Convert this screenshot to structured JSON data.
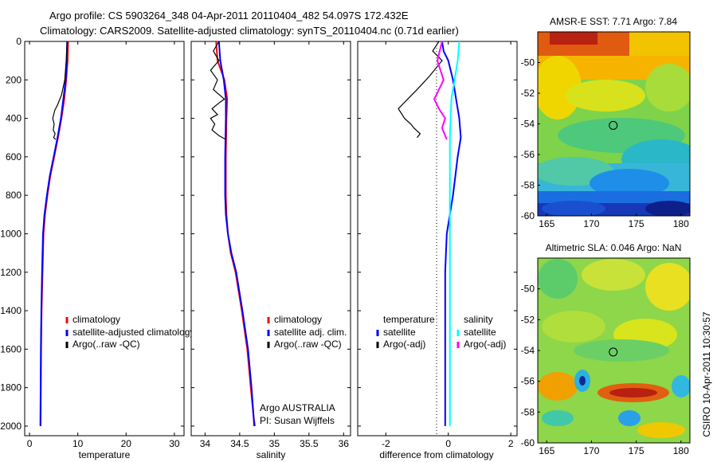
{
  "header": {
    "line1": "Argo profile: CS 5903264_348 04-Apr-2011 20110404_482 54.097S 172.432E",
    "line2": "Climatology: CARS2009. Satellite-adjusted climatology: synTS_20110404.nc (0.71d earlier)"
  },
  "side_label": "CSIRO 10-Apr-2011 10:30:57",
  "colors": {
    "clim": "#ff0000",
    "sat": "#0000ff",
    "argo": "#000000",
    "cyan": "#00ffff",
    "magenta": "#ff00ff"
  },
  "chart_data": [
    {
      "id": "temperature",
      "type": "line",
      "xlabel": "temperature",
      "xlim": [
        -1,
        32
      ],
      "ylim": [
        0,
        2050
      ],
      "xticks": [
        0,
        10,
        20,
        30
      ],
      "yticks": [
        0,
        200,
        400,
        600,
        800,
        1000,
        1200,
        1400,
        1600,
        1800,
        2000
      ],
      "legend": [
        "climatology",
        "satellite-adjusted climatology",
        "Argo(..raw -QC)"
      ],
      "series": [
        {
          "name": "climatology",
          "color": "clim",
          "x": [
            8.0,
            7.9,
            7.6,
            7.2,
            6.6,
            5.9,
            5.1,
            4.3,
            3.7,
            3.2,
            2.9,
            2.7,
            2.5,
            2.4,
            2.35,
            2.3
          ],
          "y": [
            0,
            100,
            200,
            300,
            400,
            500,
            600,
            700,
            800,
            900,
            1000,
            1200,
            1400,
            1600,
            1800,
            2000
          ]
        },
        {
          "name": "satellite-adjusted climatology",
          "color": "sat",
          "x": [
            7.8,
            7.7,
            7.5,
            7.0,
            6.5,
            5.8,
            5.0,
            4.2,
            3.6,
            3.1,
            2.8,
            2.6,
            2.45,
            2.35,
            2.3,
            2.25
          ],
          "y": [
            0,
            100,
            200,
            300,
            400,
            500,
            600,
            700,
            800,
            900,
            1000,
            1200,
            1400,
            1600,
            1800,
            2000
          ]
        },
        {
          "name": "Argo(..raw -QC)",
          "color": "argo",
          "x": [
            7.8,
            7.6,
            7.3,
            6.6,
            5.8,
            5.2,
            4.8,
            5.1,
            4.9,
            5.3,
            5.0,
            5.4
          ],
          "y": [
            0,
            100,
            200,
            280,
            330,
            360,
            400,
            430,
            460,
            480,
            500,
            510
          ]
        }
      ]
    },
    {
      "id": "salinity",
      "type": "line",
      "xlabel": "salinity",
      "xlim": [
        33.8,
        36.1
      ],
      "ylim": [
        0,
        2050
      ],
      "xticks": [
        34,
        34.5,
        35,
        35.5,
        36
      ],
      "legend": [
        "climatology",
        "satellite adj. clim.",
        "Argo(..raw -QC)"
      ],
      "footer": [
        "Argo AUSTRALIA",
        "PI: Susan Wijffels"
      ],
      "series": [
        {
          "name": "climatology",
          "color": "clim",
          "x": [
            34.16,
            34.18,
            34.28,
            34.32,
            34.31,
            34.3,
            34.3,
            34.31,
            34.33,
            34.37,
            34.44,
            34.53,
            34.61,
            34.66,
            34.7,
            34.72
          ],
          "y": [
            0,
            100,
            200,
            300,
            400,
            600,
            800,
            900,
            1000,
            1100,
            1200,
            1400,
            1600,
            1800,
            1950,
            2000
          ]
        },
        {
          "name": "satellite adj. clim.",
          "color": "sat",
          "x": [
            34.2,
            34.22,
            34.27,
            34.3,
            34.3,
            34.29,
            34.29,
            34.3,
            34.33,
            34.38,
            34.45,
            34.54,
            34.62,
            34.67,
            34.7,
            34.71
          ],
          "y": [
            0,
            100,
            200,
            300,
            400,
            600,
            800,
            900,
            1000,
            1100,
            1200,
            1400,
            1600,
            1800,
            1950,
            2000
          ]
        },
        {
          "name": "Argo(..raw -QC)",
          "color": "argo",
          "x": [
            34.2,
            34.12,
            34.2,
            34.08,
            34.18,
            34.12,
            34.28,
            34.2,
            34.1,
            34.18,
            34.08,
            34.14,
            34.1,
            34.2,
            34.3
          ],
          "y": [
            0,
            50,
            100,
            150,
            200,
            250,
            300,
            320,
            350,
            380,
            400,
            430,
            460,
            490,
            510
          ]
        }
      ]
    },
    {
      "id": "difference",
      "type": "line",
      "xlabel": "difference from climatology",
      "xlim": [
        -2.9,
        2.2
      ],
      "ylim": [
        0,
        2050
      ],
      "xticks": [
        -2,
        0,
        2
      ],
      "legend": [
        "temperature",
        "satellite",
        "Argo(-adj)",
        "salinity",
        "satellite",
        "Argo(-adj)"
      ],
      "series": [
        {
          "name": "temperature satellite",
          "color": "sat",
          "x": [
            -0.2,
            -0.15,
            0.0,
            0.15,
            0.25,
            0.35,
            0.4,
            0.3,
            0.15,
            0.05,
            -0.05,
            -0.1,
            -0.1,
            -0.1,
            -0.1
          ],
          "y": [
            0,
            50,
            100,
            200,
            300,
            400,
            500,
            600,
            800,
            900,
            1000,
            1200,
            1400,
            1600,
            2000
          ]
        },
        {
          "name": "temperature Argo(-adj)",
          "color": "argo",
          "x": [
            -0.3,
            -0.5,
            -0.2,
            -0.6,
            -1.0,
            -1.3,
            -1.6,
            -1.4,
            -1.2,
            -1.1,
            -0.9,
            -1.0
          ],
          "y": [
            0,
            50,
            100,
            180,
            250,
            300,
            350,
            400,
            430,
            450,
            480,
            500
          ]
        },
        {
          "name": "salinity satellite",
          "color": "cyan",
          "x": [
            0.35,
            0.3,
            0.2,
            0.1,
            0.05,
            0.05,
            0.05,
            0.05,
            0.05,
            0.05
          ],
          "y": [
            0,
            100,
            200,
            300,
            500,
            800,
            1000,
            1400,
            1800,
            2000
          ]
        },
        {
          "name": "salinity Argo(-adj)",
          "color": "magenta",
          "x": [
            -0.2,
            -0.35,
            -0.15,
            -0.3,
            -0.45,
            -0.3,
            -0.1,
            -0.2,
            -0.05
          ],
          "y": [
            0,
            100,
            200,
            250,
            300,
            350,
            400,
            450,
            510
          ]
        }
      ]
    },
    {
      "id": "sst_map",
      "type": "heatmap",
      "title": "AMSR-E SST: 7.71 Argo: 7.84",
      "xlim": [
        164,
        181
      ],
      "ylim": [
        -60,
        -48
      ],
      "xticks": [
        165,
        170,
        175,
        180
      ],
      "yticks": [
        -50,
        -52,
        -54,
        -56,
        -58,
        -60
      ],
      "argo_position": [
        172.43,
        -54.1
      ]
    },
    {
      "id": "sla_map",
      "type": "heatmap",
      "title": "Altimetric SLA: 0.046 Argo: NaN",
      "xlim": [
        164,
        181
      ],
      "ylim": [
        -60,
        -48
      ],
      "xticks": [
        165,
        170,
        175,
        180
      ],
      "yticks": [
        -50,
        -52,
        -54,
        -56,
        -58,
        -60
      ],
      "argo_position": [
        172.43,
        -54.1
      ]
    }
  ]
}
